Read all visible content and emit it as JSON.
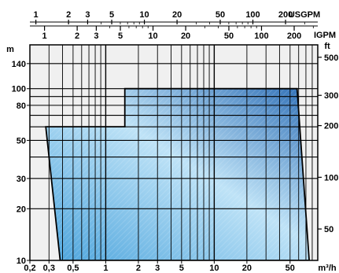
{
  "chart_data": {
    "type": "area",
    "title": "",
    "x_scale": "log",
    "y_scale": "log",
    "xlim": [
      0.2,
      90
    ],
    "ylim": [
      10,
      180
    ],
    "grid": true,
    "colors": {
      "fill_top": "#2f6fb6",
      "fill_mid": "#bfe3f7",
      "fill_bottom": "#4aa3dc",
      "outline": "#000000"
    },
    "x_axis_bottom": {
      "label": "m³/h",
      "ticks": [
        0.2,
        0.3,
        0.5,
        1,
        2,
        3,
        5,
        10,
        20,
        50
      ],
      "tick_labels": [
        "0,2",
        "0,3",
        "0,5",
        "1",
        "2",
        "3",
        "5",
        "10",
        "20",
        "50"
      ]
    },
    "x_axis_top_usgpm": {
      "label": "USGPM",
      "ticks": [
        1,
        2,
        3,
        5,
        10,
        20,
        50,
        100,
        200
      ],
      "tick_labels": [
        "1",
        "2",
        "3",
        "5",
        "10",
        "20",
        "50",
        "100",
        "200"
      ],
      "m3h_per_unit": 0.2271
    },
    "x_axis_top_igpm": {
      "label": "IGPM",
      "ticks": [
        1,
        2,
        3,
        5,
        10,
        20,
        50,
        100,
        200
      ],
      "tick_labels": [
        "1",
        "2",
        "3",
        "5",
        "10",
        "20",
        "50",
        "100",
        "200"
      ],
      "m3h_per_unit": 0.2728
    },
    "y_axis_left": {
      "label": "m",
      "ticks": [
        10,
        20,
        30,
        50,
        80,
        100,
        140
      ],
      "tick_labels": [
        "10",
        "20",
        "30",
        "50",
        "80",
        "100",
        "140"
      ]
    },
    "y_axis_right": {
      "label": "ft",
      "ticks": [
        50,
        100,
        200,
        300,
        500
      ],
      "tick_labels": [
        "50",
        "100",
        "200",
        "300",
        "500"
      ],
      "m_per_unit": 0.3048
    },
    "envelope": {
      "x": [
        0.38,
        0.28,
        0.28,
        1.5,
        1.5,
        58,
        75
      ],
      "y": [
        10,
        60,
        60,
        60,
        100,
        100,
        10
      ]
    }
  }
}
